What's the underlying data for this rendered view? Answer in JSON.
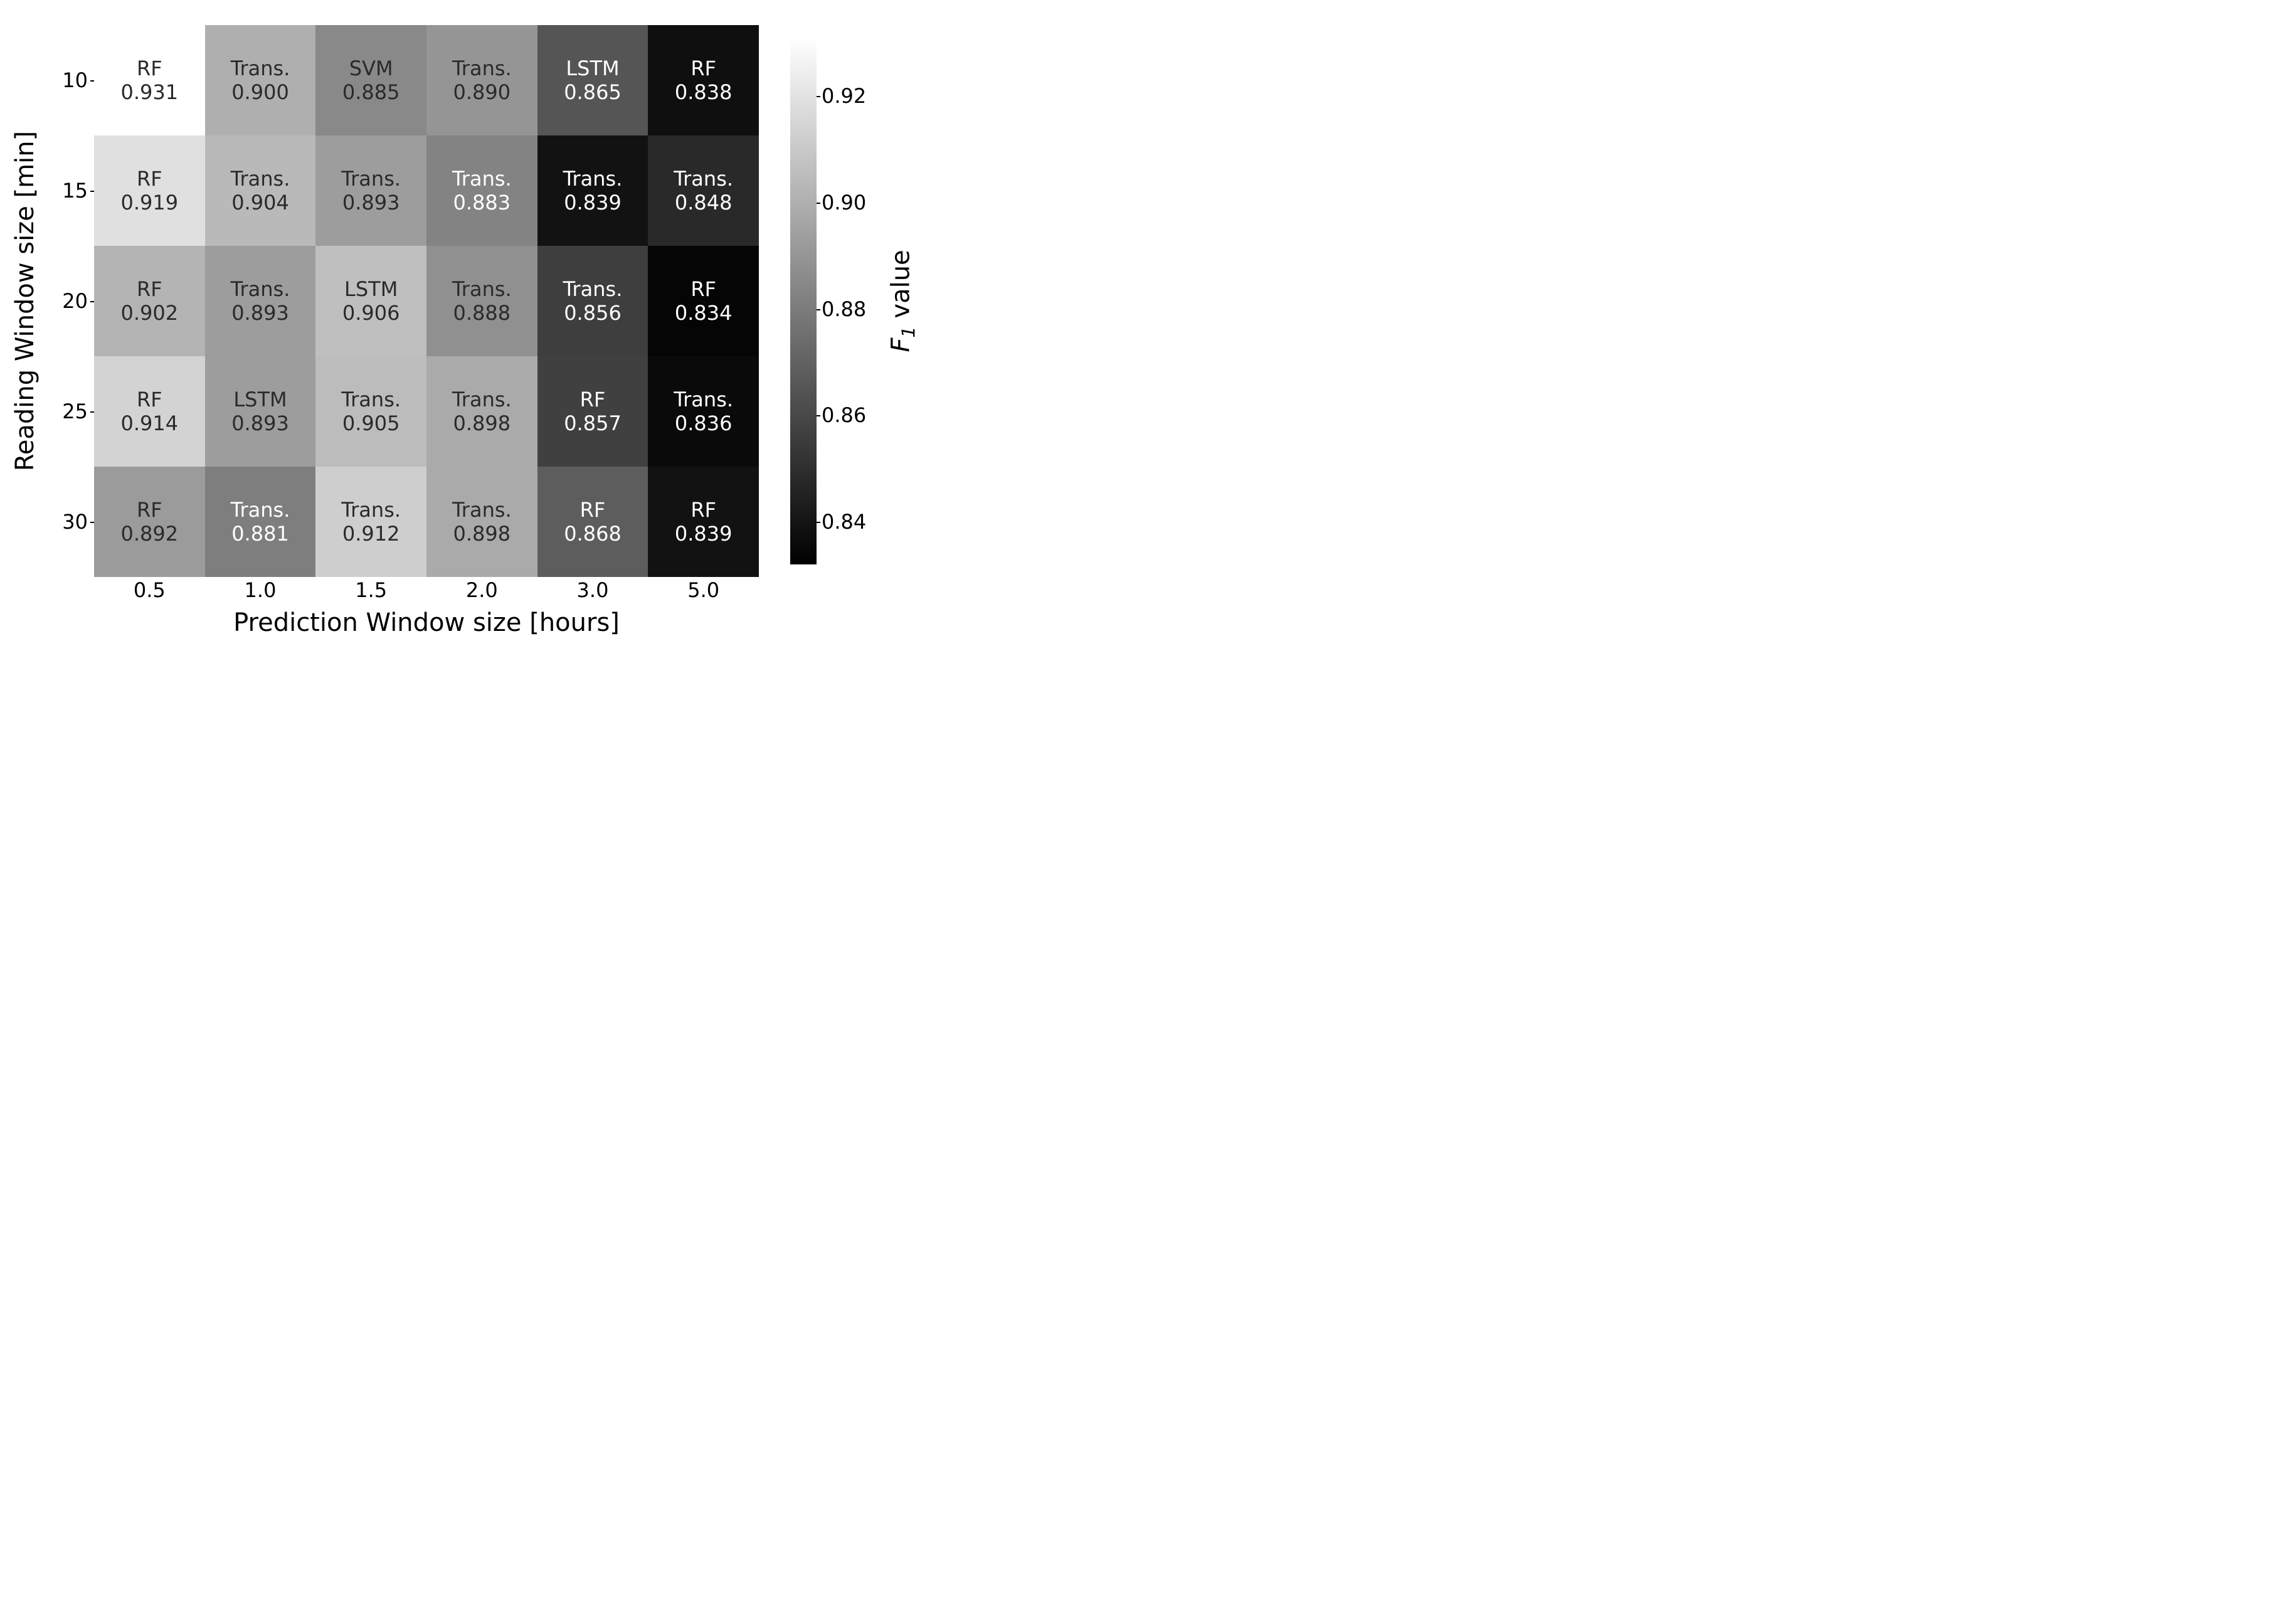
{
  "chart": {
    "type": "heatmap",
    "x_label": "Prediction Window size [hours]",
    "y_label": "Reading Window size [min]",
    "colorbar_label_html": "<span class='it'>F</span><span class='sub'>1</span> value",
    "x_categories": [
      "0.5",
      "1.0",
      "1.5",
      "2.0",
      "3.0",
      "5.0"
    ],
    "y_categories": [
      "10",
      "15",
      "20",
      "25",
      "30"
    ],
    "vmin": 0.832,
    "vmax": 0.931,
    "colorbar_ticks": [
      0.84,
      0.86,
      0.88,
      0.9,
      0.92
    ],
    "colorbar_tick_labels": [
      "0.84",
      "0.86",
      "0.88",
      "0.90",
      "0.92"
    ],
    "cell_fontsize": 32,
    "tick_fontsize": 32,
    "label_fontsize": 40,
    "light_text_color": "#ffffff",
    "dark_text_color": "#2a2a2a",
    "text_threshold": 0.885,
    "background_color": "#ffffff",
    "cells": [
      [
        {
          "model": "RF",
          "value": 0.931
        },
        {
          "model": "Trans.",
          "value": 0.9
        },
        {
          "model": "SVM",
          "value": 0.885
        },
        {
          "model": "Trans.",
          "value": 0.89
        },
        {
          "model": "LSTM",
          "value": 0.865
        },
        {
          "model": "RF",
          "value": 0.838
        }
      ],
      [
        {
          "model": "RF",
          "value": 0.919
        },
        {
          "model": "Trans.",
          "value": 0.904
        },
        {
          "model": "Trans.",
          "value": 0.893
        },
        {
          "model": "Trans.",
          "value": 0.883
        },
        {
          "model": "Trans.",
          "value": 0.839
        },
        {
          "model": "Trans.",
          "value": 0.848
        }
      ],
      [
        {
          "model": "RF",
          "value": 0.902
        },
        {
          "model": "Trans.",
          "value": 0.893
        },
        {
          "model": "LSTM",
          "value": 0.906
        },
        {
          "model": "Trans.",
          "value": 0.888
        },
        {
          "model": "Trans.",
          "value": 0.856
        },
        {
          "model": "RF",
          "value": 0.834
        }
      ],
      [
        {
          "model": "RF",
          "value": 0.914
        },
        {
          "model": "LSTM",
          "value": 0.893
        },
        {
          "model": "Trans.",
          "value": 0.905
        },
        {
          "model": "Trans.",
          "value": 0.898
        },
        {
          "model": "RF",
          "value": 0.857
        },
        {
          "model": "Trans.",
          "value": 0.836
        }
      ],
      [
        {
          "model": "RF",
          "value": 0.892
        },
        {
          "model": "Trans.",
          "value": 0.881
        },
        {
          "model": "Trans.",
          "value": 0.912
        },
        {
          "model": "Trans.",
          "value": 0.898
        },
        {
          "model": "RF",
          "value": 0.868
        },
        {
          "model": "RF",
          "value": 0.839
        }
      ]
    ]
  }
}
